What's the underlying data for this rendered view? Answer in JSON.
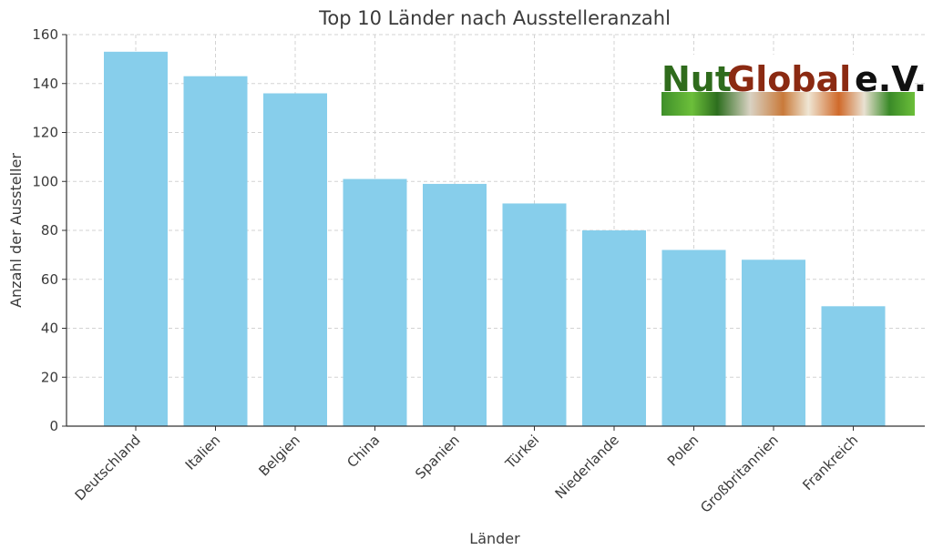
{
  "chart_data": {
    "type": "bar",
    "title": "Top 10 Länder nach Ausstelleranzahl",
    "xlabel": "Länder",
    "ylabel": "Anzahl der Aussteller",
    "categories": [
      "Deutschland",
      "Italien",
      "Belgien",
      "China",
      "Spanien",
      "Türkei",
      "Niederlande",
      "Polen",
      "Großbritannien",
      "Frankreich"
    ],
    "values": [
      153,
      143,
      136,
      101,
      99,
      91,
      80,
      72,
      68,
      49
    ],
    "ylim": [
      0,
      160
    ],
    "yticks": [
      0,
      20,
      40,
      60,
      80,
      100,
      120,
      140,
      160
    ],
    "grid": true,
    "bar_color": "#87ceeb"
  },
  "logo": {
    "text_nut": "Nut",
    "text_global": "Global",
    "text_ev": "e.V.",
    "color_nut": "#2f6b1c",
    "color_global": "#8b2a12",
    "color_ev": "#111111"
  }
}
